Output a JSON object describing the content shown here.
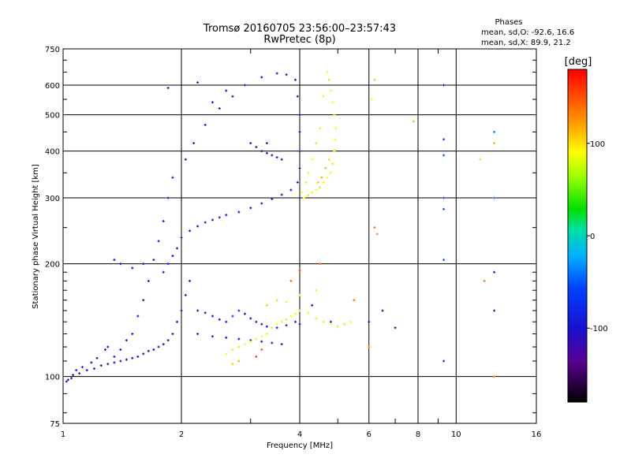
{
  "chart_data": {
    "type": "scatter",
    "title": "Tromsø 20160705 23:56:00–23:57:43",
    "subtitle": "RwPretec (8p)",
    "xlabel": "Frequency [MHz]",
    "ylabel": "Stationary phase Virtual Height [km]",
    "x_scale": "log",
    "y_scale": "log",
    "xlim": [
      1,
      16
    ],
    "ylim": [
      75,
      750
    ],
    "x_ticks": [
      1,
      2,
      4,
      6,
      8,
      10,
      16
    ],
    "x_minor_ticks": [
      3,
      5,
      7,
      9
    ],
    "y_ticks": [
      75,
      100,
      200,
      300,
      400,
      500,
      600,
      750
    ],
    "grid": true,
    "phase_stats": {
      "heading": "Phases",
      "o_line": "mean, sd,O:  -92.6, 16.6",
      "x_line": "mean, sd,X:   89.9, 21.2"
    },
    "colorbar": {
      "label": "[deg]",
      "range": [
        -180,
        180
      ],
      "ticks": [
        -100,
        0,
        100
      ],
      "colormap": "rainbow"
    },
    "series": [
      {
        "points": [
          [
            1.02,
            97,
            -100
          ],
          [
            1.05,
            99,
            -110
          ],
          [
            1.1,
            102,
            -105
          ],
          [
            1.15,
            104,
            -100
          ],
          [
            1.2,
            105,
            -95
          ],
          [
            1.25,
            107,
            -100
          ],
          [
            1.3,
            108,
            -110
          ],
          [
            1.35,
            109,
            -100
          ],
          [
            1.4,
            110,
            -95
          ],
          [
            1.45,
            111,
            -100
          ],
          [
            1.5,
            112,
            -105
          ],
          [
            1.55,
            113,
            -100
          ],
          [
            1.6,
            115,
            -110
          ],
          [
            1.65,
            117,
            -100
          ],
          [
            1.7,
            118,
            -95
          ],
          [
            1.75,
            120,
            -105
          ],
          [
            1.8,
            122,
            -100
          ],
          [
            1.85,
            125,
            -110
          ],
          [
            1.9,
            130,
            -100
          ],
          [
            1.95,
            140,
            -95
          ],
          [
            2.0,
            150,
            -100
          ],
          [
            2.05,
            165,
            -105
          ],
          [
            2.1,
            180,
            -110
          ],
          [
            1.8,
            190,
            -100
          ],
          [
            1.85,
            200,
            -95
          ],
          [
            1.9,
            210,
            -100
          ],
          [
            1.95,
            220,
            -105
          ],
          [
            2.0,
            235,
            -100
          ],
          [
            2.1,
            245,
            -110
          ],
          [
            2.2,
            252,
            -100
          ],
          [
            2.3,
            258,
            -95
          ],
          [
            2.4,
            262,
            -100
          ],
          [
            2.5,
            266,
            -105
          ],
          [
            2.6,
            270,
            -100
          ],
          [
            2.8,
            275,
            -110
          ],
          [
            3.0,
            282,
            -100
          ],
          [
            3.2,
            290,
            -95
          ],
          [
            3.4,
            298,
            -100
          ],
          [
            3.6,
            306,
            -105
          ],
          [
            3.8,
            315,
            -100
          ],
          [
            3.95,
            330,
            -110
          ],
          [
            4.0,
            360,
            -100
          ],
          [
            4.0,
            400,
            -95
          ],
          [
            4.0,
            450,
            -100
          ],
          [
            4.0,
            500,
            -105
          ],
          [
            3.95,
            560,
            -100
          ],
          [
            3.9,
            620,
            -110
          ],
          [
            3.7,
            640,
            -100
          ],
          [
            3.5,
            645,
            -95
          ],
          [
            3.2,
            630,
            -100
          ],
          [
            2.9,
            600,
            -105
          ],
          [
            2.7,
            560,
            -100
          ],
          [
            2.5,
            520,
            -110
          ],
          [
            2.3,
            470,
            -100
          ],
          [
            2.15,
            420,
            -95
          ],
          [
            2.05,
            380,
            -100
          ],
          [
            1.9,
            340,
            -105
          ],
          [
            1.85,
            300,
            -100
          ],
          [
            1.8,
            260,
            -110
          ],
          [
            1.75,
            230,
            -100
          ],
          [
            1.7,
            205,
            -95
          ],
          [
            1.65,
            180,
            -100
          ],
          [
            1.6,
            160,
            -105
          ],
          [
            1.55,
            145,
            -100
          ],
          [
            1.5,
            130,
            -110
          ],
          [
            1.45,
            125,
            -100
          ],
          [
            1.4,
            118,
            -95
          ],
          [
            1.35,
            113,
            -100
          ],
          [
            1.3,
            120,
            -105
          ],
          [
            1.28,
            118,
            -100
          ],
          [
            1.22,
            112,
            -110
          ],
          [
            1.18,
            109,
            -100
          ],
          [
            1.12,
            106,
            -95
          ],
          [
            1.08,
            104,
            -100
          ],
          [
            1.06,
            101,
            -105
          ],
          [
            1.03,
            98,
            -100
          ],
          [
            2.2,
            150,
            -100
          ],
          [
            2.3,
            148,
            -95
          ],
          [
            2.4,
            145,
            -105
          ],
          [
            2.5,
            142,
            -100
          ],
          [
            2.6,
            140,
            -80
          ],
          [
            2.7,
            145,
            -60
          ],
          [
            2.8,
            150,
            -70
          ],
          [
            2.9,
            147,
            -100
          ],
          [
            3.0,
            143,
            -110
          ],
          [
            3.1,
            140,
            -100
          ],
          [
            3.2,
            138,
            -95
          ],
          [
            3.3,
            136,
            -100
          ],
          [
            3.5,
            135,
            -105
          ],
          [
            3.7,
            137,
            -100
          ],
          [
            3.9,
            140,
            -110
          ],
          [
            4.0,
            138,
            -100
          ],
          [
            2.2,
            130,
            -100
          ],
          [
            2.4,
            128,
            -95
          ],
          [
            2.6,
            127,
            -100
          ],
          [
            2.8,
            126,
            -105
          ],
          [
            3.0,
            125,
            -100
          ],
          [
            3.2,
            124,
            -110
          ],
          [
            3.4,
            123,
            -100
          ],
          [
            3.6,
            122,
            -95
          ],
          [
            3.0,
            420,
            -100
          ],
          [
            3.1,
            410,
            -105
          ],
          [
            3.2,
            400,
            -100
          ],
          [
            3.3,
            395,
            -110
          ],
          [
            3.4,
            390,
            -100
          ],
          [
            3.5,
            385,
            -95
          ],
          [
            3.6,
            380,
            -100
          ],
          [
            3.3,
            420,
            -105
          ],
          [
            2.2,
            610,
            -100
          ],
          [
            1.85,
            590,
            -110
          ],
          [
            2.4,
            540,
            -100
          ],
          [
            2.6,
            580,
            -95
          ],
          [
            1.35,
            205,
            -100
          ],
          [
            1.4,
            200,
            -105
          ],
          [
            1.5,
            195,
            -100
          ],
          [
            1.6,
            200,
            -110
          ],
          [
            9.3,
            600,
            -90
          ],
          [
            9.3,
            430,
            -60
          ],
          [
            9.3,
            390,
            -50
          ],
          [
            9.3,
            300,
            -60
          ],
          [
            9.3,
            280,
            -55
          ],
          [
            9.3,
            205,
            -50
          ],
          [
            9.3,
            110,
            -80
          ],
          [
            12.5,
            450,
            -40
          ],
          [
            12.5,
            300,
            -40
          ],
          [
            12.5,
            190,
            -110
          ],
          [
            12.5,
            150,
            -120
          ],
          [
            4.8,
            140,
            -100
          ],
          [
            4.3,
            155,
            -110
          ],
          [
            6.0,
            140,
            -100
          ],
          [
            6.5,
            150,
            -110
          ],
          [
            7.0,
            135,
            -120
          ]
        ]
      },
      {
        "points": [
          [
            4.1,
            300,
            90
          ],
          [
            4.2,
            305,
            100
          ],
          [
            4.3,
            310,
            95
          ],
          [
            4.4,
            315,
            90
          ],
          [
            4.5,
            320,
            100
          ],
          [
            4.6,
            330,
            85
          ],
          [
            4.7,
            340,
            90
          ],
          [
            4.8,
            350,
            95
          ],
          [
            4.85,
            370,
            100
          ],
          [
            4.9,
            400,
            90
          ],
          [
            4.92,
            430,
            85
          ],
          [
            4.95,
            460,
            95
          ],
          [
            4.9,
            500,
            100
          ],
          [
            4.85,
            540,
            90
          ],
          [
            4.8,
            580,
            95
          ],
          [
            4.75,
            620,
            100
          ],
          [
            4.7,
            650,
            90
          ],
          [
            4.6,
            560,
            85
          ],
          [
            4.5,
            460,
            95
          ],
          [
            4.4,
            420,
            100
          ],
          [
            4.3,
            380,
            90
          ],
          [
            4.2,
            350,
            95
          ],
          [
            4.15,
            330,
            100
          ],
          [
            4.05,
            310,
            90
          ],
          [
            4.55,
            340,
            120
          ],
          [
            4.65,
            360,
            115
          ],
          [
            4.75,
            380,
            105
          ],
          [
            4.45,
            330,
            110
          ],
          [
            2.6,
            115,
            90
          ],
          [
            2.7,
            118,
            95
          ],
          [
            2.8,
            120,
            100
          ],
          [
            2.9,
            122,
            90
          ],
          [
            3.0,
            124,
            95
          ],
          [
            3.1,
            126,
            100
          ],
          [
            3.2,
            128,
            90
          ],
          [
            3.3,
            130,
            95
          ],
          [
            3.4,
            135,
            100
          ],
          [
            3.5,
            138,
            90
          ],
          [
            3.6,
            140,
            95
          ],
          [
            3.7,
            142,
            100
          ],
          [
            3.8,
            145,
            90
          ],
          [
            3.9,
            147,
            95
          ],
          [
            4.0,
            150,
            100
          ],
          [
            4.2,
            148,
            90
          ],
          [
            4.4,
            143,
            95
          ],
          [
            4.6,
            140,
            100
          ],
          [
            4.8,
            138,
            90
          ],
          [
            5.0,
            136,
            95
          ],
          [
            5.2,
            138,
            100
          ],
          [
            5.4,
            140,
            90
          ],
          [
            3.3,
            155,
            110
          ],
          [
            3.5,
            160,
            105
          ],
          [
            3.7,
            158,
            95
          ],
          [
            4.0,
            165,
            100
          ],
          [
            4.4,
            170,
            95
          ],
          [
            3.2,
            118,
            150
          ],
          [
            3.1,
            113,
            160
          ],
          [
            2.8,
            110,
            120
          ],
          [
            2.7,
            108,
            110
          ],
          [
            6.2,
            620,
            110
          ],
          [
            6.1,
            550,
            90
          ],
          [
            6.2,
            250,
            140
          ],
          [
            6.3,
            240,
            130
          ],
          [
            7.8,
            480,
            115
          ],
          [
            11.5,
            380,
            100
          ],
          [
            11.8,
            180,
            140
          ],
          [
            12.5,
            100,
            140
          ],
          [
            12.5,
            420,
            120
          ],
          [
            4.5,
            200,
            150
          ],
          [
            5.5,
            160,
            140
          ],
          [
            6.0,
            120,
            130
          ],
          [
            3.8,
            180,
            145
          ],
          [
            4.0,
            192,
            160
          ]
        ]
      }
    ]
  }
}
